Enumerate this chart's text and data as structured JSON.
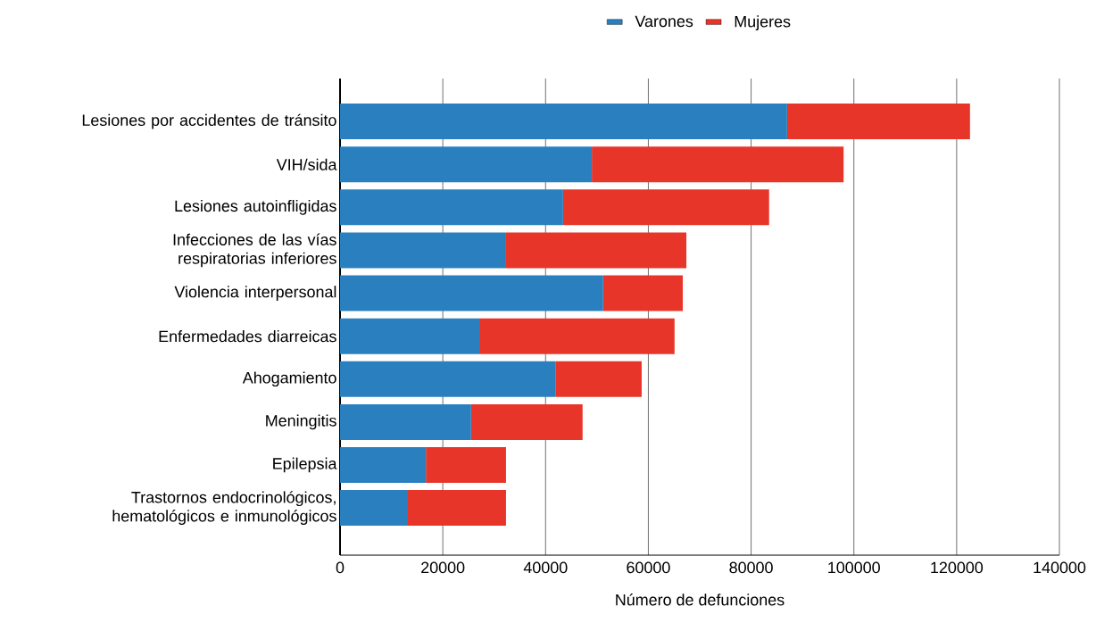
{
  "chart_data": {
    "type": "bar",
    "orientation": "horizontal",
    "stacked": true,
    "categories": [
      "Lesiones por accidentes de tránsito",
      "VIH/sida",
      "Lesiones autoinfligidas",
      "Infecciones de las vías respiratorias inferiores",
      "Violencia interpersonal",
      "Enfermedades diarreicas",
      "Ahogamiento",
      "Meningitis",
      "Epilepsia",
      "Trastornos endocrinológicos, hematológicos e inmunológicos"
    ],
    "series": [
      {
        "name": "Varones",
        "color": "#2a80bf",
        "values": [
          87000,
          49000,
          43400,
          32300,
          51200,
          27100,
          42000,
          25500,
          16700,
          13200
        ]
      },
      {
        "name": "Mujeres",
        "color": "#e8352a",
        "values": [
          35600,
          49000,
          40100,
          35100,
          15500,
          38000,
          16700,
          21700,
          15600,
          19100
        ]
      }
    ],
    "xlabel": "Número de defunciones",
    "xlim": [
      0,
      140000
    ],
    "xticks": [
      0,
      20000,
      40000,
      60000,
      80000,
      100000,
      120000,
      140000
    ],
    "grid": "x",
    "legend": "top"
  }
}
